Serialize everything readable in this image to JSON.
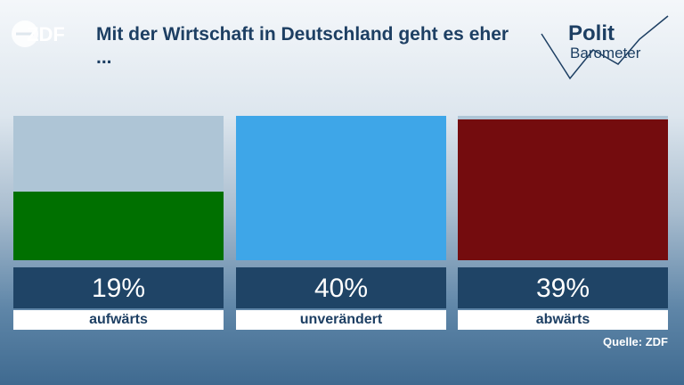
{
  "header": {
    "brand": "ZDF",
    "title": "Mit der Wirtschaft in Deutschland geht es eher ...",
    "logo_word_1": "Polit",
    "logo_word_2": "Barometer"
  },
  "chart_data": {
    "type": "bar",
    "title": "Mit der Wirtschaft in Deutschland geht es eher ...",
    "categories": [
      "aufwärts",
      "unverändert",
      "abwärts"
    ],
    "values": [
      19,
      40,
      39
    ],
    "value_labels": [
      "19%",
      "40%",
      "39%"
    ],
    "unit": "%",
    "ylim": [
      0,
      40
    ],
    "colors": [
      "#007000",
      "#3ea6e8",
      "#740c0e"
    ],
    "grid": false,
    "legend": "none"
  },
  "source": "Quelle: ZDF"
}
